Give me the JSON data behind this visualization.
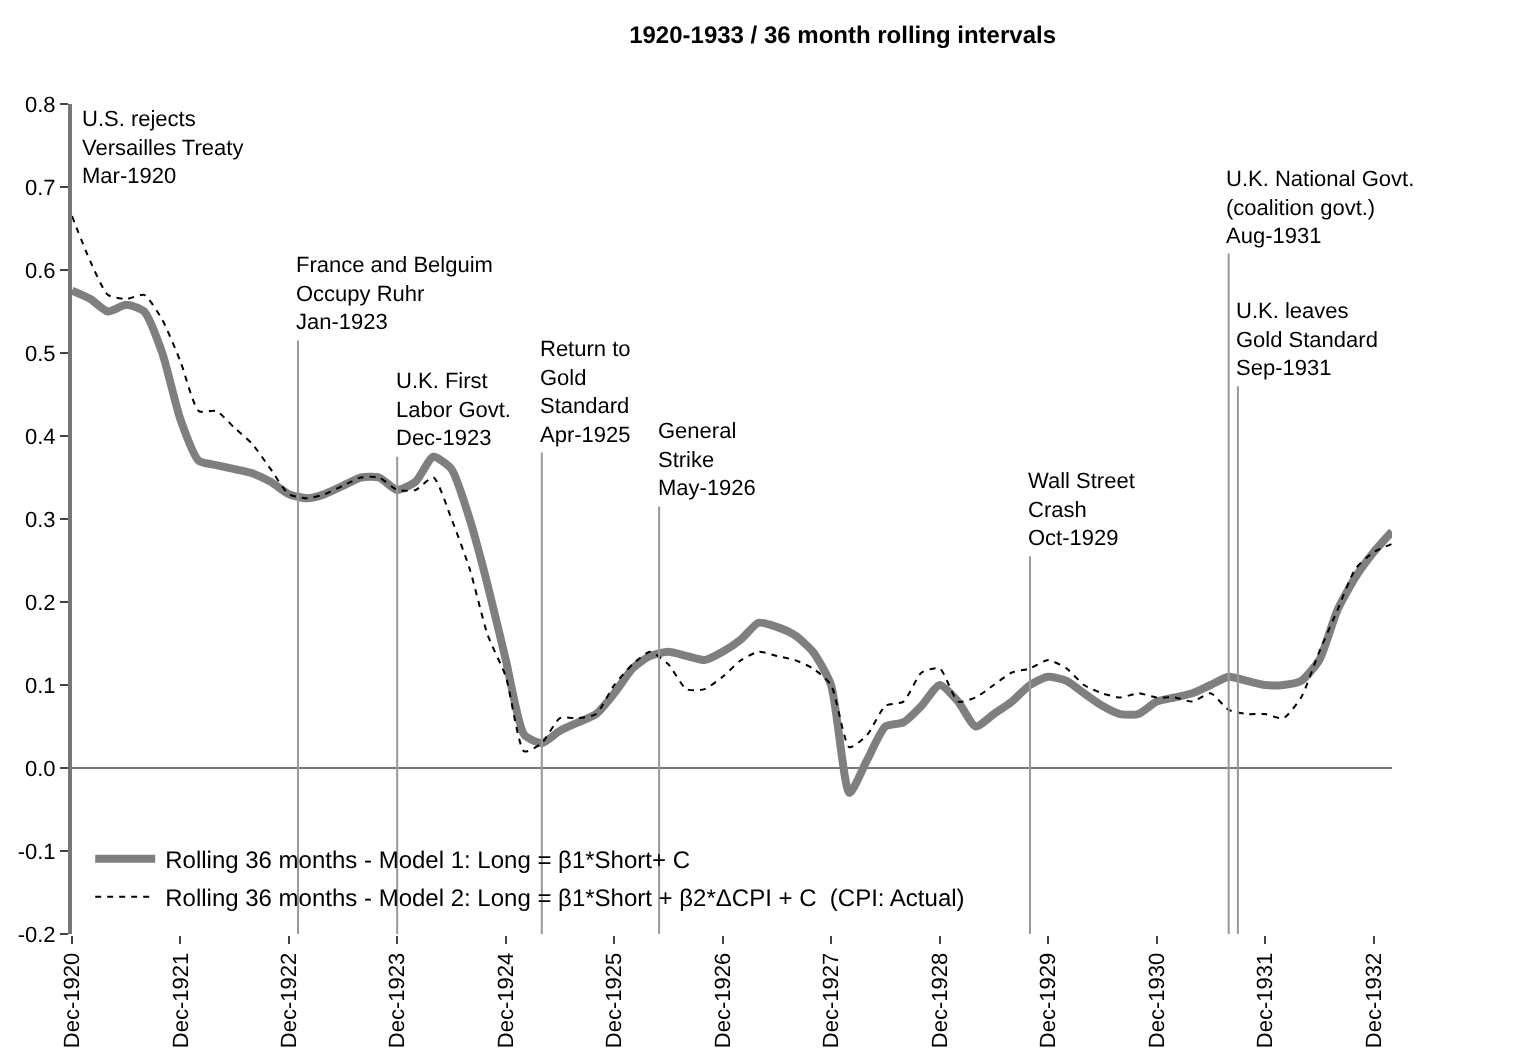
{
  "chart_data": {
    "type": "line",
    "title": "1920-1933 / 36 month rolling intervals",
    "x": [
      "1920-12",
      "1921-02",
      "1921-04",
      "1921-06",
      "1921-08",
      "1921-10",
      "1921-12",
      "1922-02",
      "1922-04",
      "1922-06",
      "1922-08",
      "1922-10",
      "1922-12",
      "1923-02",
      "1923-04",
      "1923-06",
      "1923-08",
      "1923-10",
      "1923-12",
      "1924-02",
      "1924-04",
      "1924-06",
      "1924-08",
      "1924-10",
      "1924-12",
      "1925-02",
      "1925-04",
      "1925-06",
      "1925-08",
      "1925-10",
      "1925-12",
      "1926-02",
      "1926-04",
      "1926-06",
      "1926-08",
      "1926-10",
      "1926-12",
      "1927-02",
      "1927-04",
      "1927-06",
      "1927-08",
      "1927-10",
      "1927-12",
      "1928-02",
      "1928-04",
      "1928-06",
      "1928-08",
      "1928-10",
      "1928-12",
      "1929-02",
      "1929-04",
      "1929-06",
      "1929-08",
      "1929-10",
      "1929-12",
      "1930-02",
      "1930-04",
      "1930-06",
      "1930-08",
      "1930-10",
      "1930-12",
      "1931-02",
      "1931-04",
      "1931-06",
      "1931-08",
      "1931-10",
      "1931-12",
      "1932-02",
      "1932-04",
      "1932-06",
      "1932-08",
      "1932-10",
      "1932-12",
      "1933-02"
    ],
    "series": [
      {
        "name": "Rolling 36 months - Model 1: Long = β1*Short+ C",
        "color": "#7f7f7f",
        "line_style": "solid",
        "values": [
          0.575,
          0.565,
          0.55,
          0.558,
          0.55,
          0.5,
          0.42,
          0.37,
          0.365,
          0.36,
          0.355,
          0.345,
          0.33,
          0.325,
          0.33,
          0.34,
          0.35,
          0.35,
          0.335,
          0.345,
          0.375,
          0.36,
          0.3,
          0.22,
          0.13,
          0.04,
          0.03,
          0.045,
          0.055,
          0.065,
          0.09,
          0.12,
          0.135,
          0.14,
          0.135,
          0.13,
          0.14,
          0.155,
          0.175,
          0.17,
          0.16,
          0.14,
          0.1,
          -0.03,
          0.01,
          0.05,
          0.055,
          0.075,
          0.1,
          0.08,
          0.05,
          0.065,
          0.08,
          0.1,
          0.11,
          0.105,
          0.09,
          0.075,
          0.065,
          0.065,
          0.08,
          0.085,
          0.09,
          0.1,
          0.11,
          0.105,
          0.1,
          0.1,
          0.105,
          0.13,
          0.19,
          0.23,
          0.26,
          0.285
        ]
      },
      {
        "name": "Rolling 36 months - Model 2: Long = β1*Short + β2*ΔCPI + C  (CPI: Actual)",
        "color": "#000000",
        "line_style": "dotted",
        "values": [
          0.665,
          0.61,
          0.57,
          0.565,
          0.57,
          0.54,
          0.49,
          0.43,
          0.43,
          0.41,
          0.39,
          0.36,
          0.33,
          0.325,
          0.33,
          0.34,
          0.35,
          0.35,
          0.335,
          0.335,
          0.35,
          0.3,
          0.24,
          0.16,
          0.11,
          0.02,
          0.03,
          0.06,
          0.06,
          0.065,
          0.1,
          0.125,
          0.14,
          0.125,
          0.095,
          0.095,
          0.11,
          0.13,
          0.14,
          0.135,
          0.13,
          0.12,
          0.1,
          0.025,
          0.04,
          0.075,
          0.08,
          0.115,
          0.12,
          0.08,
          0.085,
          0.1,
          0.115,
          0.12,
          0.13,
          0.12,
          0.1,
          0.09,
          0.085,
          0.09,
          0.085,
          0.085,
          0.08,
          0.09,
          0.07,
          0.065,
          0.065,
          0.06,
          0.085,
          0.14,
          0.19,
          0.24,
          0.26,
          0.27
        ]
      }
    ],
    "xlim": [
      "1920-12",
      "1933-02"
    ],
    "xticks": [
      {
        "value": "1920-12",
        "label": "Dec-1920"
      },
      {
        "value": "1921-12",
        "label": "Dec-1921"
      },
      {
        "value": "1922-12",
        "label": "Dec-1922"
      },
      {
        "value": "1923-12",
        "label": "Dec-1923"
      },
      {
        "value": "1924-12",
        "label": "Dec-1924"
      },
      {
        "value": "1925-12",
        "label": "Dec-1925"
      },
      {
        "value": "1926-12",
        "label": "Dec-1926"
      },
      {
        "value": "1927-12",
        "label": "Dec-1927"
      },
      {
        "value": "1928-12",
        "label": "Dec-1928"
      },
      {
        "value": "1929-12",
        "label": "Dec-1929"
      },
      {
        "value": "1930-12",
        "label": "Dec-1930"
      },
      {
        "value": "1931-12",
        "label": "Dec-1931"
      },
      {
        "value": "1932-12",
        "label": "Dec-1932"
      }
    ],
    "ylim": [
      -0.2,
      0.8
    ],
    "yticks": [
      -0.2,
      -0.1,
      {
        "value": 0,
        "label": "0.0"
      },
      0.1,
      0.2,
      0.3,
      0.4,
      0.5,
      0.6,
      0.7,
      0.8
    ],
    "ref_lines": [
      {
        "axis": "x",
        "value": "1923-01",
        "label": "France and Belguim\nOccupy Ruhr\nJan-1923",
        "color": "#999999"
      },
      {
        "axis": "x",
        "value": "1923-12",
        "label": "U.K. First\nLabor Govt.\nDec-1923",
        "color": "#999999"
      },
      {
        "axis": "x",
        "value": "1925-04",
        "label": "Return to\nGold\nStandard\nApr-1925",
        "color": "#999999"
      },
      {
        "axis": "x",
        "value": "1926-05",
        "label": "General\nStrike\nMay-1926",
        "color": "#999999"
      },
      {
        "axis": "x",
        "value": "1929-10",
        "label": "Wall Street\nCrash\nOct-1929",
        "color": "#999999"
      },
      {
        "axis": "x",
        "value": "1931-08",
        "label": "U.K. National Govt.\n(coalition govt.)\nAug-1931",
        "color": "#999999"
      },
      {
        "axis": "x",
        "value": "1931-09",
        "label": "U.K. leaves\nGold Standard\nSep-1931",
        "color": "#999999"
      }
    ],
    "annotations": [
      "U.S. rejects\nVersailles Treaty\nMar-1920"
    ],
    "legend": "bottom left"
  }
}
